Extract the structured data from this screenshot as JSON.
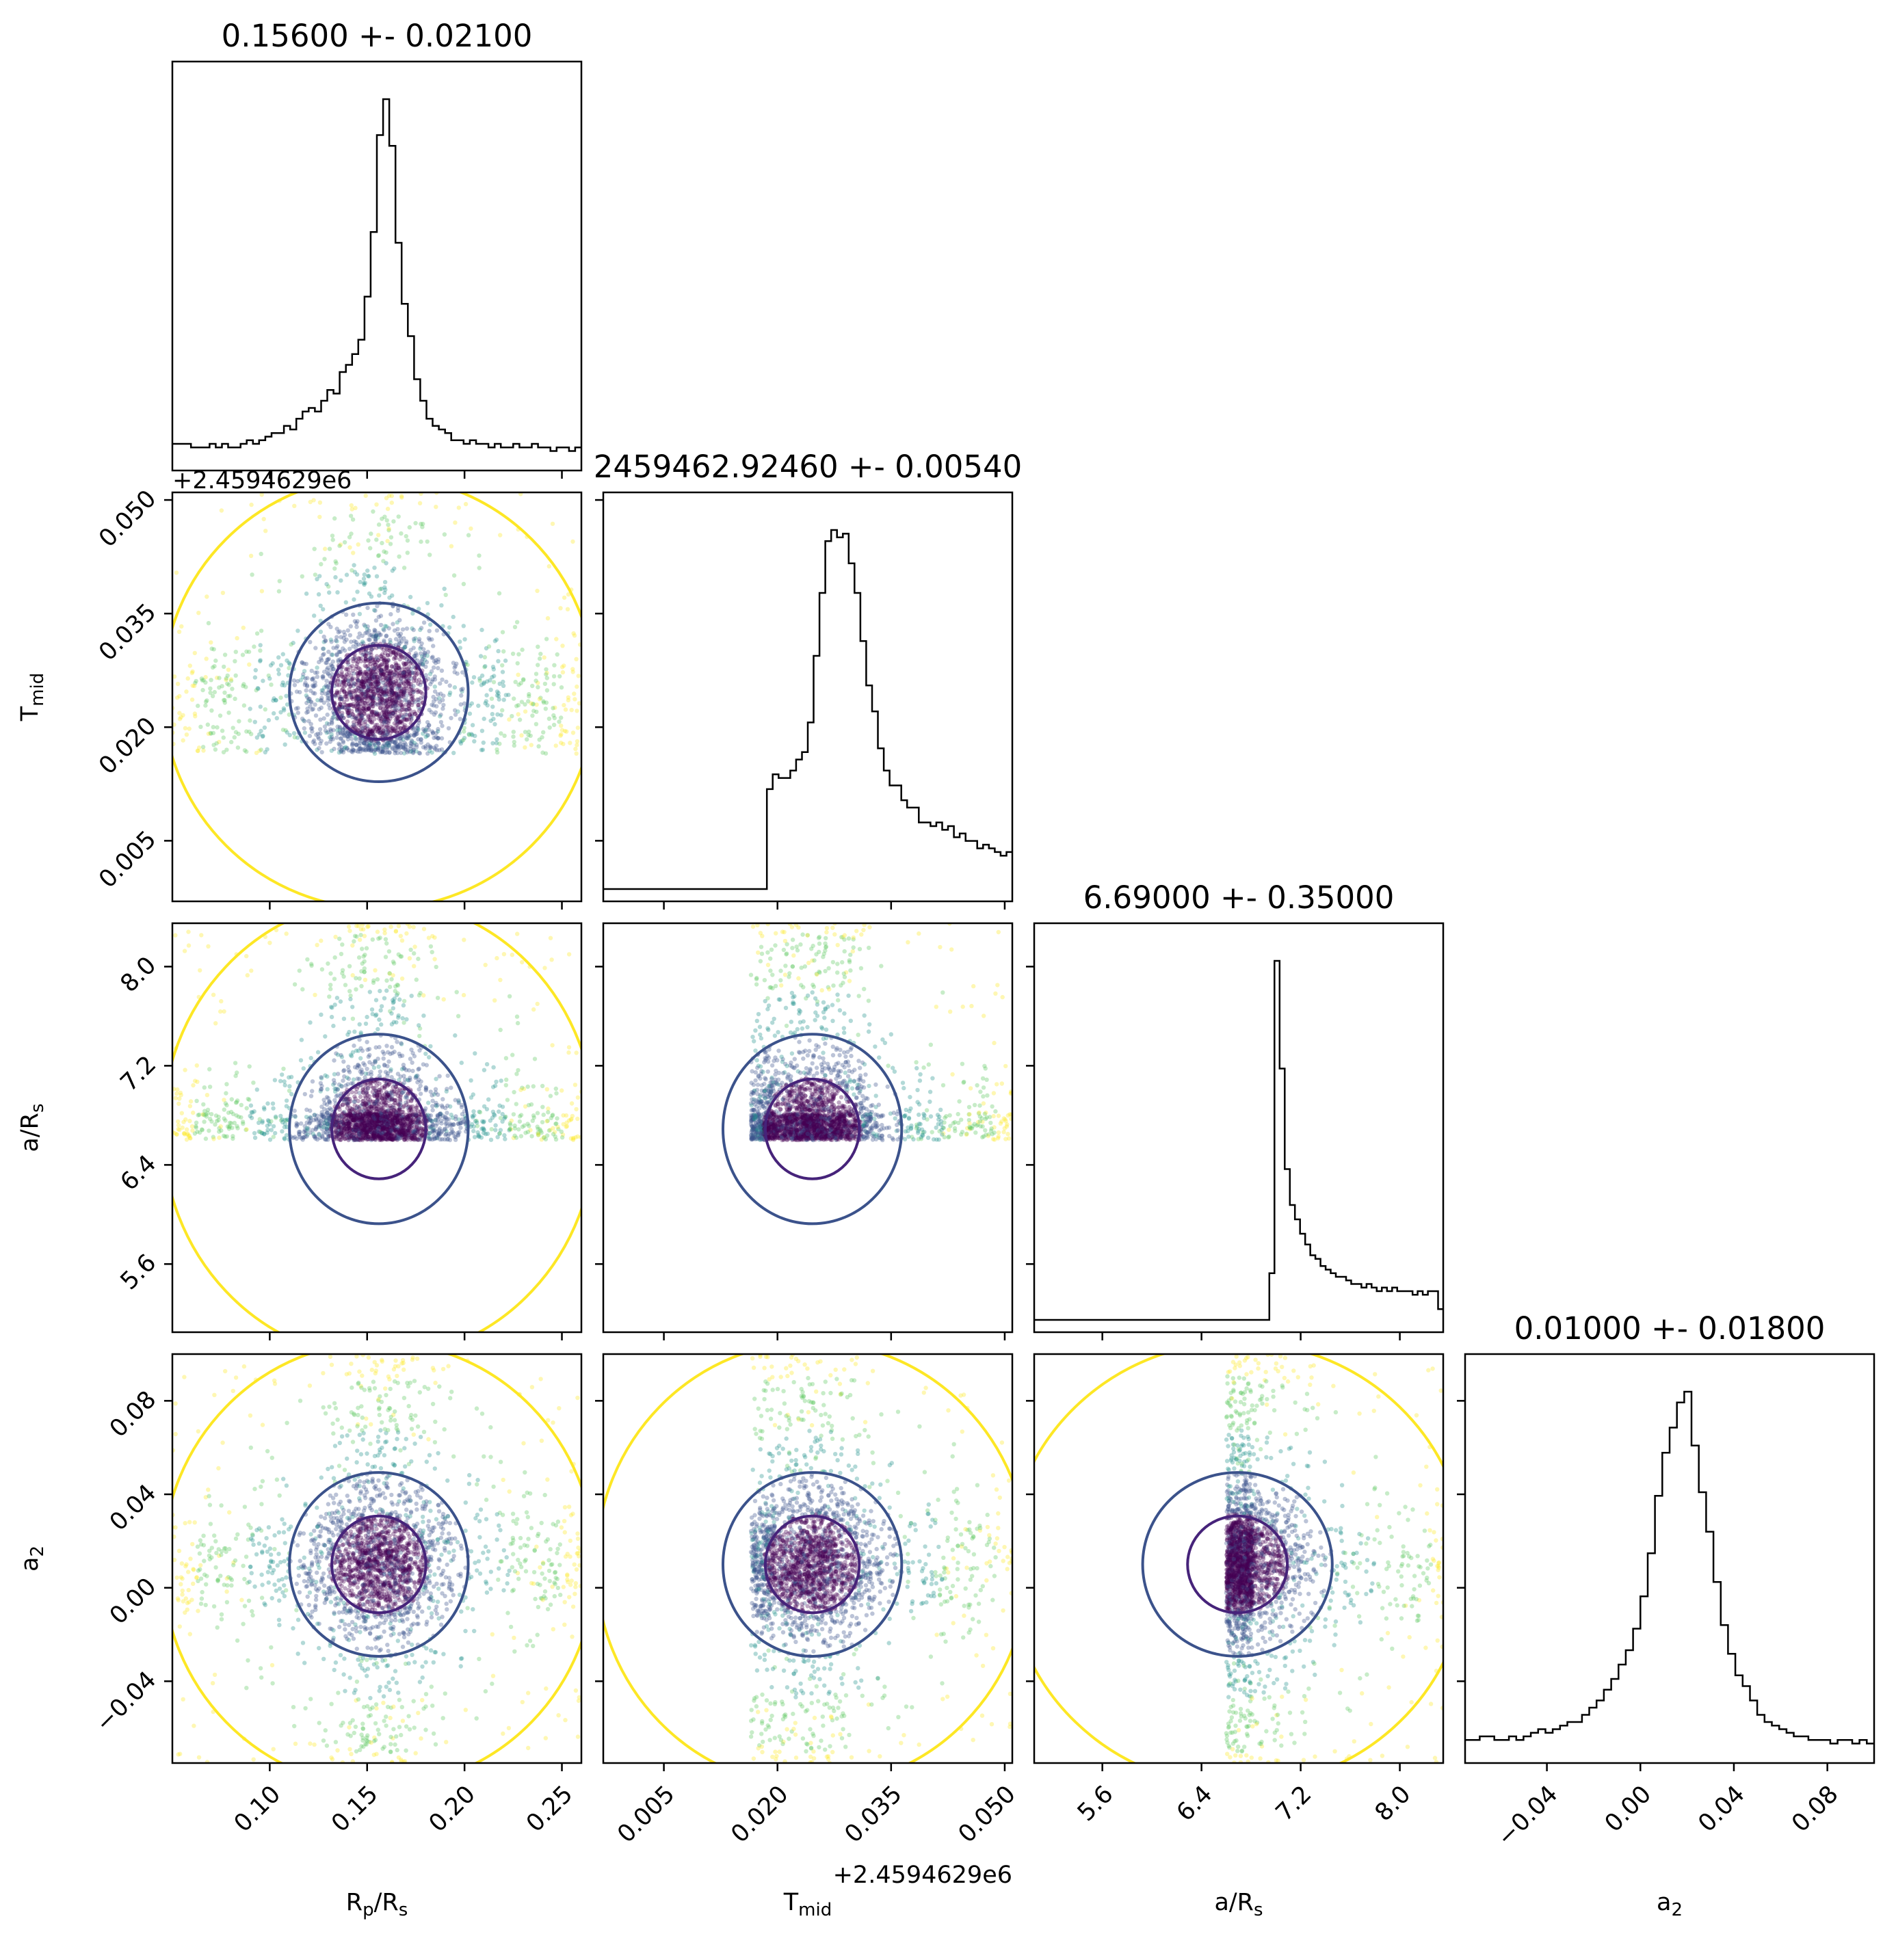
{
  "chart_data": {
    "type": "corner",
    "parameters": [
      {
        "key": "rprs",
        "label": "R",
        "label_sub": "p",
        "label_tail": "/R",
        "label_tail_sub": "s",
        "title": "0.15600 +- 0.02100",
        "range": [
          0.05,
          0.26
        ],
        "ticks": [
          0.1,
          0.15,
          0.2,
          0.25
        ],
        "tick_labels": [
          "0.10",
          "0.15",
          "0.20",
          "0.25"
        ],
        "median": 0.156,
        "sigma": 0.021,
        "lower_bound": null,
        "offset": ""
      },
      {
        "key": "tmid",
        "label": "T",
        "label_sub": "mid",
        "label_tail": "",
        "label_tail_sub": "",
        "title": "2459462.92460 +- 0.00540",
        "range": [
          -0.003,
          0.051
        ],
        "ticks": [
          0.005,
          0.02,
          0.035,
          0.05
        ],
        "tick_labels": [
          "0.005",
          "0.020",
          "0.035",
          "0.050"
        ],
        "median": 0.0246,
        "sigma": 0.0054,
        "lower_bound": 0.0165,
        "offset": "+2.4594629e6"
      },
      {
        "key": "ars",
        "label": "a/R",
        "label_sub": "s",
        "label_tail": "",
        "label_tail_sub": "",
        "title": "6.69000 +- 0.35000",
        "range": [
          5.05,
          8.35
        ],
        "ticks": [
          5.6,
          6.4,
          7.2,
          8.0
        ],
        "tick_labels": [
          "5.6",
          "6.4",
          "7.2",
          "8.0"
        ],
        "median": 6.69,
        "sigma": 0.35,
        "lower_bound": 6.6,
        "offset": ""
      },
      {
        "key": "a2",
        "label": "a",
        "label_sub": "2",
        "label_tail": "",
        "label_tail_sub": "",
        "title": "0.01000 +- 0.01800",
        "range": [
          -0.075,
          0.1
        ],
        "ticks": [
          -0.04,
          0.0,
          0.04,
          0.08
        ],
        "tick_labels": [
          "−0.04",
          "0.00",
          "0.04",
          "0.08"
        ],
        "median": 0.01,
        "sigma": 0.018,
        "lower_bound": null,
        "offset": ""
      }
    ],
    "histograms_1d": [
      {
        "param": "rprs",
        "bins": [
          0.05,
          0.26
        ],
        "counts": [
          4,
          4,
          4,
          3,
          3,
          3,
          4,
          3,
          4,
          3,
          3,
          4,
          5,
          4,
          5,
          6,
          7,
          7,
          9,
          8,
          11,
          13,
          14,
          13,
          16,
          19,
          18,
          24,
          26,
          29,
          33,
          45,
          63,
          90,
          100,
          87,
          60,
          43,
          34,
          22,
          16,
          11,
          9,
          8,
          7,
          5,
          5,
          4,
          5,
          4,
          4,
          3,
          4,
          3,
          3,
          4,
          3,
          3,
          4,
          3,
          3,
          2,
          3,
          3,
          2,
          3
        ]
      },
      {
        "param": "tmid",
        "bins": [
          -0.003,
          0.051
        ],
        "counts": [
          0,
          0,
          0,
          0,
          0,
          0,
          0,
          0,
          0,
          0,
          0,
          0,
          0,
          0,
          0,
          0,
          0,
          0,
          0,
          0,
          0,
          0,
          0,
          0,
          0,
          0,
          0,
          0,
          27,
          31,
          30,
          30,
          32,
          35,
          37,
          45,
          63,
          80,
          94,
          97,
          95,
          96,
          88,
          80,
          67,
          55,
          48,
          38,
          32,
          28,
          28,
          24,
          22,
          22,
          18,
          18,
          17,
          18,
          16,
          17,
          14,
          15,
          13,
          13,
          11,
          12,
          11,
          10,
          9,
          10
        ]
      },
      {
        "param": "ars",
        "bins": [
          5.05,
          8.35
        ],
        "counts": [
          0,
          0,
          0,
          0,
          0,
          0,
          0,
          0,
          0,
          0,
          0,
          0,
          0,
          0,
          0,
          0,
          0,
          0,
          0,
          0,
          0,
          0,
          0,
          0,
          0,
          0,
          0,
          0,
          0,
          0,
          0,
          0,
          0,
          0,
          0,
          0,
          0,
          0,
          0,
          0,
          0,
          0,
          0,
          0,
          0,
          0,
          13,
          100,
          70,
          42,
          32,
          28,
          24,
          21,
          18,
          17,
          15,
          14,
          13,
          12,
          12,
          11,
          10,
          10,
          9,
          10,
          9,
          8,
          9,
          8,
          9,
          8,
          8,
          8,
          7,
          8,
          7,
          8,
          8,
          3
        ]
      },
      {
        "param": "a2",
        "bins": [
          -0.075,
          0.1
        ],
        "counts": [
          3,
          3,
          4,
          4,
          3,
          3,
          4,
          3,
          4,
          5,
          6,
          5,
          6,
          7,
          8,
          8,
          10,
          12,
          14,
          17,
          20,
          24,
          28,
          34,
          43,
          55,
          71,
          83,
          90,
          97,
          100,
          85,
          72,
          61,
          47,
          35,
          27,
          21,
          18,
          14,
          10,
          8,
          7,
          6,
          5,
          4,
          4,
          3,
          3,
          3,
          2,
          3,
          3,
          2,
          3,
          2
        ]
      }
    ],
    "scatter_2d": [
      {
        "x": "rprs",
        "y": "tmid",
        "contours": [
          "1-sigma",
          "2-sigma",
          "outer"
        ]
      },
      {
        "x": "rprs",
        "y": "ars",
        "contours": [
          "1-sigma",
          "2-sigma",
          "outer"
        ]
      },
      {
        "x": "tmid",
        "y": "ars",
        "contours": [
          "1-sigma",
          "2-sigma"
        ]
      },
      {
        "x": "rprs",
        "y": "a2",
        "contours": [
          "1-sigma",
          "2-sigma",
          "outer"
        ]
      },
      {
        "x": "tmid",
        "y": "a2",
        "contours": [
          "1-sigma",
          "2-sigma",
          "outer"
        ]
      },
      {
        "x": "ars",
        "y": "a2",
        "contours": [
          "1-sigma",
          "2-sigma",
          "outer"
        ]
      }
    ],
    "colors": {
      "hist_line": "#000000",
      "contour_inner": "#46237a",
      "contour_mid": "#3b528b",
      "contour_outer": "#fde725",
      "scatter_colormap": [
        "#440154",
        "#3b528b",
        "#21918c",
        "#5ec962",
        "#fde725"
      ]
    },
    "grid": false,
    "legend": "none"
  }
}
